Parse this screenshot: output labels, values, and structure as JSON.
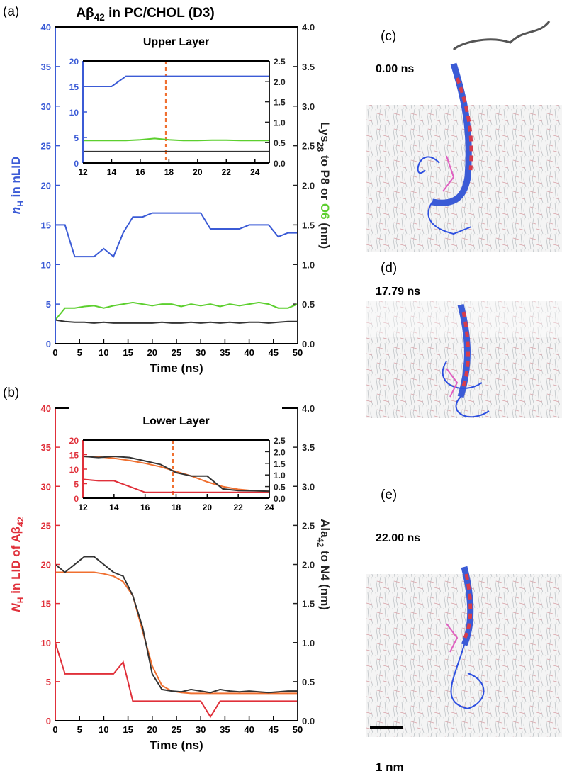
{
  "figure_title_parts": [
    {
      "text": "Aβ"
    },
    {
      "text": "42",
      "sub": true
    },
    {
      "text": " in PC/CHOL (D3)"
    }
  ],
  "chart_data": [
    {
      "type": "line",
      "panel": "(a)",
      "x_label": "Time (ns)",
      "y_label_parts": [
        {
          "text": "n",
          "italic": true
        },
        {
          "text": "H",
          "sub": true
        },
        {
          "text": " in nLID"
        }
      ],
      "y2_label_parts": [
        {
          "text": "Lys"
        },
        {
          "text": "28",
          "sub": true
        },
        {
          "text": " to P8 or "
        },
        {
          "text": "O6",
          "color": "#5ccf2e"
        },
        {
          "text": " (nm)"
        }
      ],
      "y_color": "#3b5bd6",
      "y2_color": "#222222",
      "xlim": [
        0,
        50
      ],
      "xticks": [
        0,
        5,
        10,
        15,
        20,
        25,
        30,
        35,
        40,
        45,
        50
      ],
      "ylim": [
        0,
        40
      ],
      "yticks": [
        0,
        5,
        10,
        15,
        20,
        25,
        30,
        35,
        40
      ],
      "y2lim": [
        0,
        4
      ],
      "y2ticks": [
        {
          "value": 0,
          "label": "0.0"
        },
        0.5,
        {
          "value": 1,
          "label": "1.0"
        },
        1.5,
        {
          "value": 2,
          "label": "2.0"
        },
        2.5,
        {
          "value": 3,
          "label": "3.0"
        },
        3.5,
        {
          "value": 4,
          "label": "4.0"
        }
      ],
      "x": [
        0,
        2,
        4,
        6,
        8,
        10,
        12,
        14,
        16,
        18,
        20,
        22,
        24,
        26,
        28,
        30,
        32,
        34,
        36,
        38,
        40,
        42,
        44,
        46,
        48,
        50
      ],
      "series": [
        {
          "color": "#3b5bd6",
          "values": [
            15,
            15,
            11,
            11,
            11,
            12,
            11,
            14,
            16,
            16,
            16.5,
            16.5,
            16.5,
            16.5,
            16.5,
            16.5,
            14.5,
            14.5,
            14.5,
            14.5,
            15,
            15,
            15,
            13.5,
            14,
            14
          ]
        },
        {
          "color": "#5ccf2e",
          "axis": "y2",
          "values": [
            0.3,
            0.45,
            0.45,
            0.47,
            0.48,
            0.45,
            0.48,
            0.5,
            0.52,
            0.5,
            0.48,
            0.5,
            0.5,
            0.47,
            0.5,
            0.48,
            0.5,
            0.47,
            0.5,
            0.48,
            0.5,
            0.52,
            0.5,
            0.45,
            0.45,
            0.5
          ]
        },
        {
          "color": "#333333",
          "axis": "y2",
          "values": [
            0.3,
            0.28,
            0.27,
            0.27,
            0.26,
            0.27,
            0.26,
            0.26,
            0.26,
            0.26,
            0.26,
            0.27,
            0.26,
            0.26,
            0.27,
            0.26,
            0.27,
            0.26,
            0.27,
            0.26,
            0.27,
            0.27,
            0.26,
            0.27,
            0.28,
            0.28
          ]
        }
      ]
    },
    {
      "type": "line",
      "title": "Upper Layer",
      "y_color": "#3b5bd6",
      "y2_color": "#222222",
      "xlim": [
        12,
        25
      ],
      "xticks": [
        12,
        14,
        16,
        18,
        20,
        22,
        24
      ],
      "ylim": [
        0,
        20
      ],
      "yticks": [
        0,
        5,
        10,
        15,
        20
      ],
      "y2lim": [
        0,
        2.5
      ],
      "y2ticks": [
        {
          "value": 0,
          "label": "0.0"
        },
        0.5,
        {
          "value": 1,
          "label": "1.0"
        },
        1.5,
        {
          "value": 2,
          "label": "2.0"
        },
        2.5
      ],
      "vline": 17.79,
      "vline_color": "#f07030",
      "x": [
        12,
        13,
        14,
        15,
        16,
        17,
        18,
        19,
        20,
        21,
        22,
        23,
        24,
        25
      ],
      "series": [
        {
          "color": "#3b5bd6",
          "values": [
            15,
            15,
            15,
            17,
            17,
            17,
            17,
            17,
            17,
            17,
            17,
            17,
            17,
            17
          ]
        },
        {
          "color": "#5ccf2e",
          "axis": "y2",
          "values": [
            0.55,
            0.55,
            0.55,
            0.55,
            0.57,
            0.6,
            0.57,
            0.55,
            0.55,
            0.56,
            0.56,
            0.55,
            0.55,
            0.55
          ]
        },
        {
          "color": "#333333",
          "axis": "y2",
          "values": [
            0.28,
            0.28,
            0.28,
            0.28,
            0.28,
            0.28,
            0.28,
            0.28,
            0.28,
            0.28,
            0.28,
            0.28,
            0.28,
            0.28
          ]
        }
      ]
    },
    {
      "type": "line",
      "panel": "(b)",
      "x_label": "Time (ns)",
      "y_label_parts": [
        {
          "text": "N",
          "italic": true
        },
        {
          "text": "H",
          "sub": true
        },
        {
          "text": " in LID of Aβ"
        },
        {
          "text": "42",
          "sub": true
        }
      ],
      "y2_label_parts": [
        {
          "text": "Ala"
        },
        {
          "text": "42",
          "sub": true
        },
        {
          "text": " to N4 (nm)"
        }
      ],
      "y_color": "#e0303a",
      "y2_color": "#222222",
      "xlim": [
        0,
        50
      ],
      "xticks": [
        0,
        5,
        10,
        15,
        20,
        25,
        30,
        35,
        40,
        45,
        50
      ],
      "ylim": [
        0,
        40
      ],
      "yticks": [
        0,
        5,
        10,
        15,
        20,
        25,
        30,
        35,
        40
      ],
      "y2lim": [
        0,
        4
      ],
      "y2ticks": [
        {
          "value": 0,
          "label": "0.0"
        },
        0.5,
        {
          "value": 1,
          "label": "1.0"
        },
        1.5,
        {
          "value": 2,
          "label": "2.0"
        },
        2.5,
        {
          "value": 3,
          "label": "3.0"
        },
        3.5,
        {
          "value": 4,
          "label": "4.0"
        }
      ],
      "x": [
        0,
        2,
        4,
        6,
        8,
        10,
        12,
        14,
        16,
        18,
        20,
        22,
        24,
        26,
        28,
        30,
        32,
        34,
        36,
        38,
        40,
        42,
        44,
        46,
        48,
        50
      ],
      "series": [
        {
          "color": "#e0303a",
          "values": [
            10,
            6,
            6,
            6,
            6,
            6,
            6,
            7.5,
            2.5,
            2.5,
            2.5,
            2.5,
            2.5,
            2.5,
            2.5,
            2.5,
            0.5,
            2.5,
            2.5,
            2.5,
            2.5,
            2.5,
            2.5,
            2.5,
            2.5,
            2.5
          ]
        },
        {
          "color": "#f07030",
          "axis": "y2",
          "values": [
            1.9,
            1.9,
            1.9,
            1.9,
            1.9,
            1.88,
            1.85,
            1.78,
            1.6,
            1.15,
            0.7,
            0.45,
            0.38,
            0.36,
            0.35,
            0.35,
            0.35,
            0.35,
            0.35,
            0.35,
            0.35,
            0.35,
            0.35,
            0.35,
            0.35,
            0.35
          ]
        },
        {
          "color": "#333333",
          "axis": "y2",
          "values": [
            2.0,
            1.9,
            2.0,
            2.1,
            2.1,
            2.0,
            1.9,
            1.85,
            1.6,
            1.2,
            0.6,
            0.4,
            0.38,
            0.37,
            0.4,
            0.38,
            0.36,
            0.4,
            0.38,
            0.37,
            0.38,
            0.37,
            0.36,
            0.37,
            0.38,
            0.38
          ]
        }
      ]
    },
    {
      "type": "line",
      "title": "Lower Layer",
      "y_color": "#e0303a",
      "y2_color": "#222222",
      "xlim": [
        12,
        24
      ],
      "xticks": [
        12,
        14,
        16,
        18,
        20,
        22,
        24
      ],
      "ylim": [
        0,
        20
      ],
      "yticks": [
        0,
        5,
        10,
        15,
        20
      ],
      "y2lim": [
        0,
        2.5
      ],
      "y2ticks": [
        {
          "value": 0,
          "label": "0.0"
        },
        0.5,
        {
          "value": 1,
          "label": "1.0"
        },
        1.5,
        {
          "value": 2,
          "label": "2.0"
        },
        2.5
      ],
      "vline": 17.79,
      "vline_color": "#f07030",
      "x": [
        12,
        13,
        14,
        15,
        16,
        17,
        18,
        19,
        20,
        21,
        22,
        23,
        24
      ],
      "series": [
        {
          "color": "#e0303a",
          "values": [
            6.5,
            6,
            6,
            4,
            2,
            2,
            2,
            2,
            2,
            2,
            2,
            2,
            2
          ]
        },
        {
          "color": "#f07030",
          "axis": "y2",
          "values": [
            1.8,
            1.78,
            1.72,
            1.62,
            1.5,
            1.35,
            1.15,
            0.95,
            0.7,
            0.5,
            0.38,
            0.32,
            0.3
          ]
        },
        {
          "color": "#333333",
          "axis": "y2",
          "values": [
            1.8,
            1.75,
            1.8,
            1.75,
            1.6,
            1.45,
            1.1,
            0.95,
            0.95,
            0.4,
            0.33,
            0.32,
            0.3
          ]
        }
      ]
    }
  ],
  "snapshots": [
    {
      "label": "(c)",
      "time": "0.00 ns"
    },
    {
      "label": "(d)",
      "time": "17.79 ns"
    },
    {
      "label": "(e)",
      "time": "22.00 ns"
    }
  ],
  "scale_bar": "1 nm"
}
